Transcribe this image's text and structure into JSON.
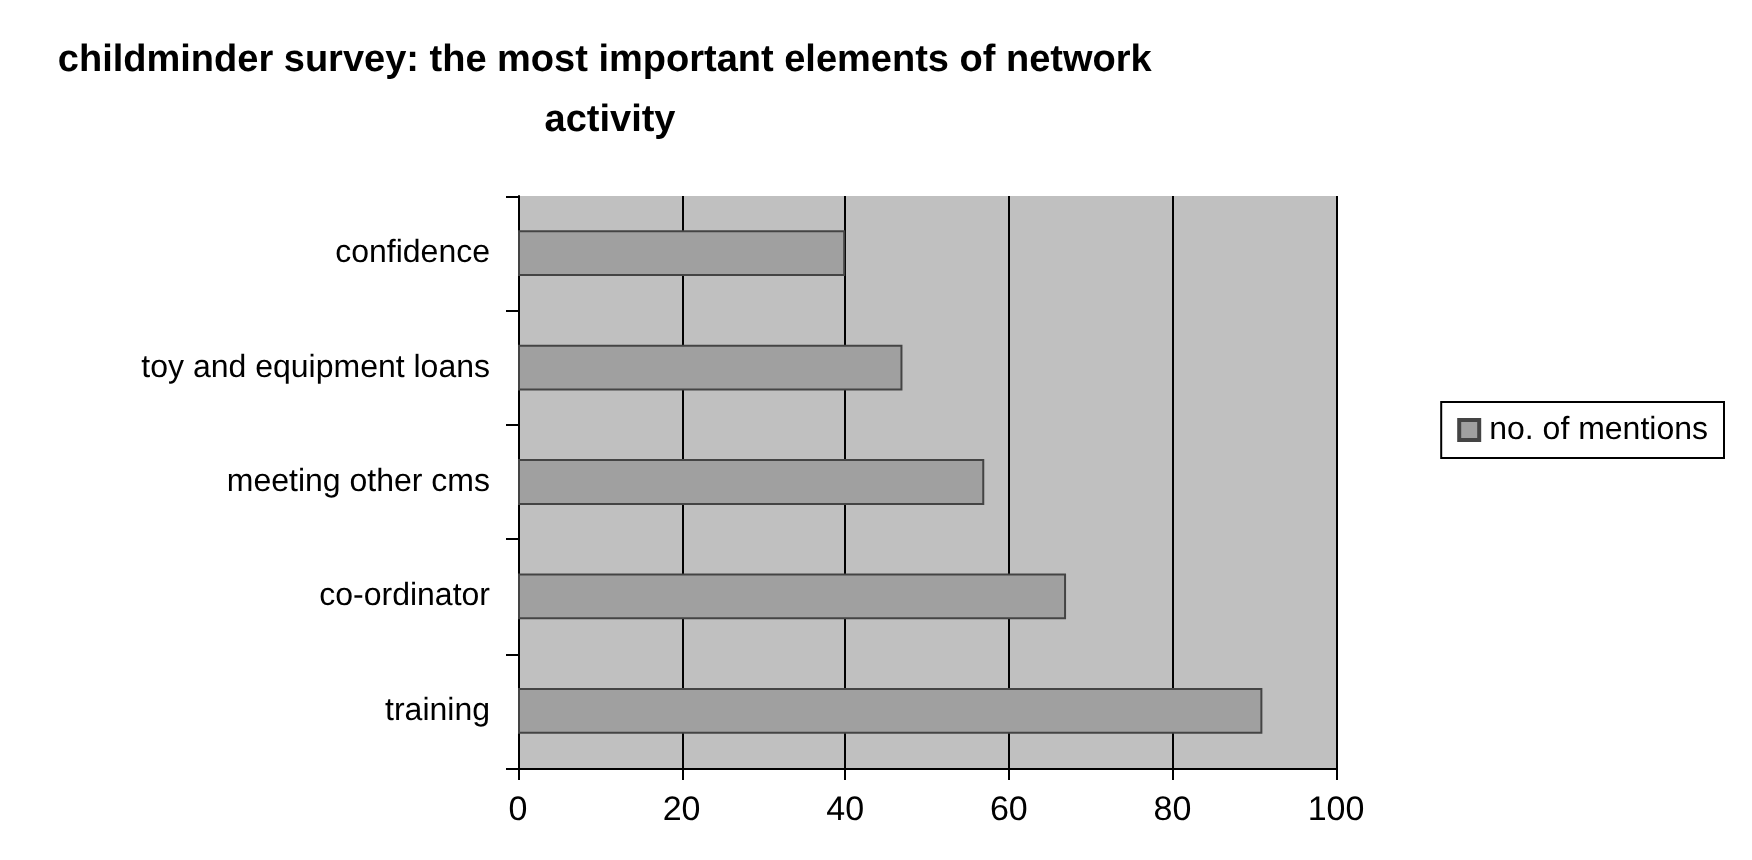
{
  "chart_data": {
    "type": "bar",
    "orientation": "horizontal",
    "title": "childminder survey: the most important elements of network activity",
    "categories": [
      "confidence",
      "toy and equipment loans",
      "meeting other cms",
      "co-ordinator",
      "training"
    ],
    "series": [
      {
        "name": "no. of mentions",
        "color": "#a0a0a0",
        "values": [
          40,
          47,
          57,
          67,
          91
        ]
      }
    ],
    "xlim": [
      0,
      100
    ],
    "xticks": [
      0,
      20,
      40,
      60,
      80,
      100
    ],
    "grid": "x",
    "legend": "right"
  }
}
